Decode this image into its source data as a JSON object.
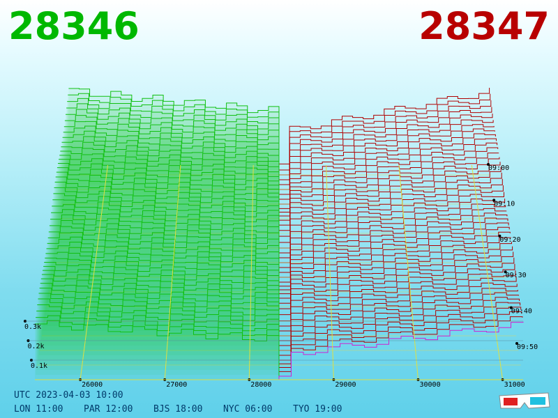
{
  "header": {
    "bid": "28346",
    "ask": "28347"
  },
  "price_axis": [
    "26000",
    "27000",
    "28000",
    "29000",
    "30000",
    "31000"
  ],
  "time_axis": [
    "09:00",
    "09:10",
    "09:20",
    "09:30",
    "09:40",
    "09:50"
  ],
  "size_axis": [
    "0.3k",
    "0.2k",
    "0.1k"
  ],
  "footer": {
    "utc": "UTC 2023-04-03 10:00",
    "cities": [
      "LON 11:00",
      "PAR 12:00",
      "BJS 18:00",
      "NYC 06:00",
      "TYO 19:00"
    ]
  }
}
